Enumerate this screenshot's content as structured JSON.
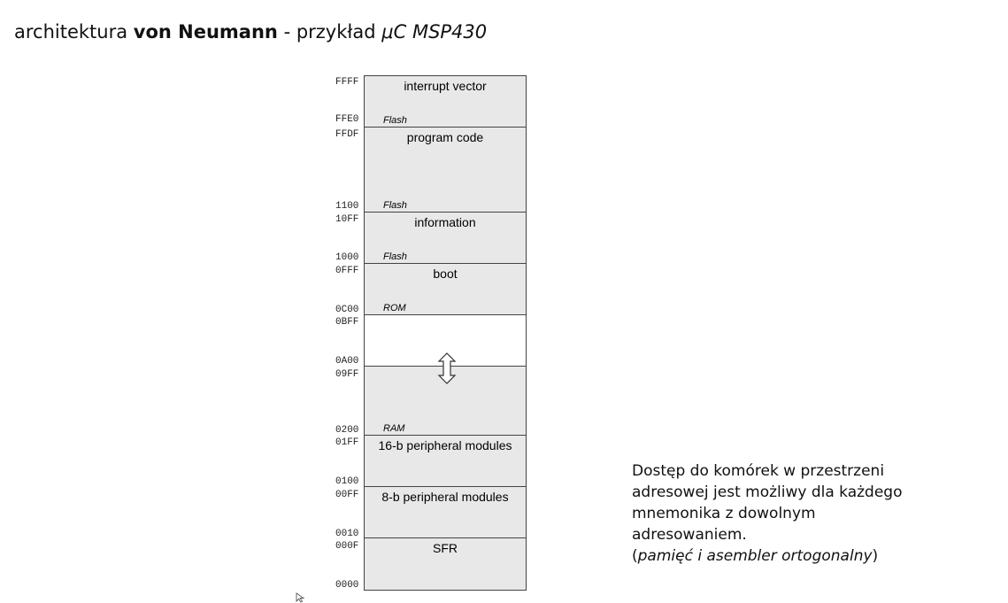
{
  "title": {
    "part1": "architektura ",
    "part2": "von Neumann",
    "part3": " - przykład ",
    "part4": "μC MSP430"
  },
  "memory_map": {
    "regions": [
      {
        "label": "interrupt vector",
        "type": "Flash",
        "top_addr": "FFFF",
        "bottom_addr": "FFE0"
      },
      {
        "label": "program code",
        "type": "Flash",
        "top_addr": "FFDF",
        "bottom_addr": "1100"
      },
      {
        "label": "information",
        "type": "Flash",
        "top_addr": "10FF",
        "bottom_addr": "1000"
      },
      {
        "label": "boot",
        "type": "ROM",
        "top_addr": "0FFF",
        "bottom_addr": "0C00"
      },
      {
        "label": "",
        "type": "",
        "top_addr": "0BFF",
        "bottom_addr": "0A00"
      },
      {
        "label": "",
        "type": "RAM",
        "top_addr": "09FF",
        "bottom_addr": "0200"
      },
      {
        "label": "16-b peripheral modules",
        "type": "",
        "top_addr": "01FF",
        "bottom_addr": "0100"
      },
      {
        "label": "8-b peripheral modules",
        "type": "",
        "top_addr": "00FF",
        "bottom_addr": "0010"
      },
      {
        "label": "SFR",
        "type": "",
        "top_addr": "000F",
        "bottom_addr": "0000"
      }
    ]
  },
  "description": {
    "line1": "Dostęp do komórek w przestrzeni",
    "line2": "adresowej jest możliwy dla każdego",
    "line3": "mnemonika z dowolnym",
    "line4": "adresowaniem.",
    "line5_open": "(",
    "line5_italic": "pamięć i asembler ortogonalny",
    "line5_close": ")"
  },
  "icons": {
    "arrow": "double-vertical-arrow-icon",
    "cursor": "mouse-pointer-icon"
  }
}
